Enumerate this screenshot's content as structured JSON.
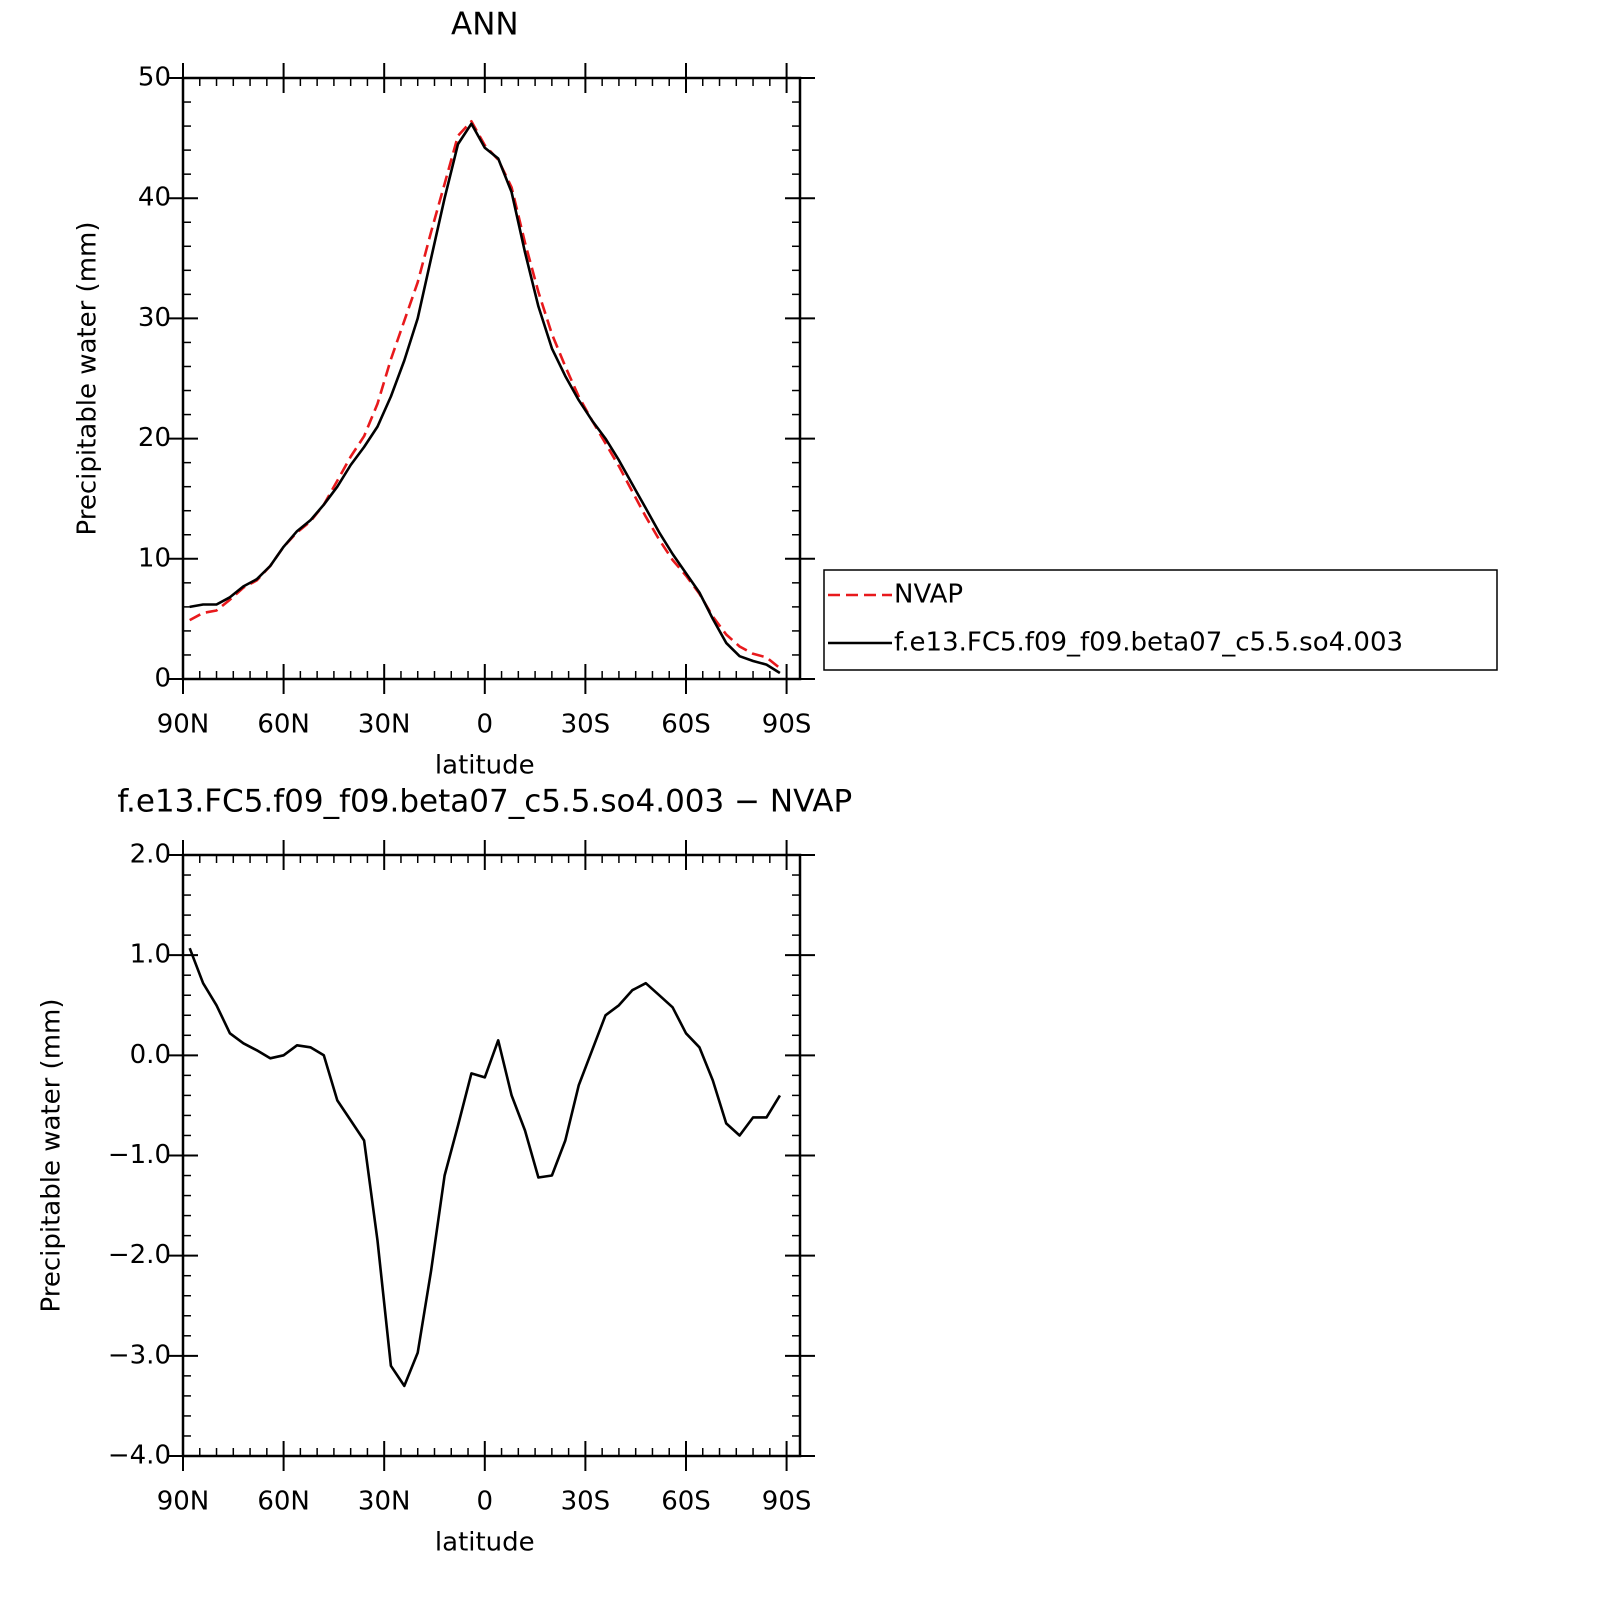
{
  "chart_data": [
    {
      "type": "line",
      "title": "ANN",
      "xlabel": "latitude",
      "ylabel": "Precipitable water (mm)",
      "x": [
        88,
        84,
        80,
        76,
        72,
        68,
        64,
        60,
        56,
        52,
        48,
        44,
        40,
        36,
        32,
        28,
        24,
        20,
        16,
        12,
        8,
        4,
        0,
        -4,
        -8,
        -12,
        -16,
        -20,
        -24,
        -28,
        -32,
        -36,
        -40,
        -44,
        -48,
        -52,
        -56,
        -60,
        -64,
        -68,
        -72,
        -76,
        -80,
        -84,
        -88
      ],
      "series": [
        {
          "name": "NVAP",
          "color": "#e8191c",
          "dashed": true,
          "values": [
            4.9,
            5.5,
            5.7,
            6.6,
            7.6,
            8.2,
            9.4,
            11.0,
            12.2,
            13.1,
            14.5,
            16.5,
            18.5,
            20.2,
            22.9,
            26.6,
            29.8,
            33.0,
            37.2,
            41.2,
            45.2,
            46.4,
            44.4,
            43.2,
            40.9,
            36.3,
            32.2,
            28.7,
            26.0,
            23.5,
            21.5,
            19.6,
            17.7,
            15.6,
            13.5,
            11.6,
            9.9,
            8.6,
            7.1,
            5.2,
            3.7,
            2.7,
            2.1,
            1.8,
            0.9
          ]
        },
        {
          "name": "f.e13.FC5.f09_f09.beta07_c5.5.so4.003",
          "color": "#000000",
          "dashed": false,
          "values": [
            6.0,
            6.2,
            6.2,
            6.8,
            7.7,
            8.3,
            9.4,
            11.0,
            12.3,
            13.2,
            14.5,
            16.0,
            17.8,
            19.3,
            21.0,
            23.5,
            26.5,
            30.0,
            35.0,
            40.0,
            44.5,
            46.2,
            44.2,
            43.3,
            40.5,
            35.5,
            31.0,
            27.5,
            25.2,
            23.2,
            21.5,
            20.0,
            18.2,
            16.2,
            14.2,
            12.2,
            10.4,
            8.8,
            7.2,
            5.0,
            3.0,
            1.9,
            1.5,
            1.2,
            0.5
          ]
        }
      ],
      "xlim": [
        90,
        -94
      ],
      "xticks": [
        {
          "value": 90,
          "label": "90N"
        },
        {
          "value": 60,
          "label": "60N"
        },
        {
          "value": 30,
          "label": "30N"
        },
        0,
        {
          "value": -30,
          "label": "30S"
        },
        {
          "value": -60,
          "label": "60S"
        },
        {
          "value": -90,
          "label": "90S"
        }
      ],
      "ylim": [
        0,
        50
      ],
      "yticks": [
        0,
        10,
        20,
        30,
        40,
        50
      ],
      "legend": "right"
    },
    {
      "type": "line",
      "title": "f.e13.FC5.f09_f09.beta07_c5.5.so4.003 − NVAP",
      "xlabel": "latitude",
      "ylabel": "Precipitable water (mm)",
      "x": [
        88,
        84,
        80,
        76,
        72,
        68,
        64,
        60,
        56,
        52,
        48,
        44,
        40,
        36,
        32,
        28,
        24,
        20,
        16,
        12,
        8,
        4,
        0,
        -4,
        -8,
        -12,
        -16,
        -20,
        -24,
        -28,
        -32,
        -36,
        -40,
        -44,
        -48,
        -52,
        -56,
        -60,
        -64,
        -68,
        -72,
        -76,
        -80,
        -84,
        -88
      ],
      "values": [
        1.07,
        0.72,
        0.5,
        0.22,
        0.12,
        0.05,
        -0.03,
        0.0,
        0.1,
        0.08,
        0.0,
        -0.45,
        -0.65,
        -0.85,
        -1.85,
        -3.1,
        -3.3,
        -2.97,
        -2.15,
        -1.2,
        -0.7,
        -0.18,
        -0.22,
        0.15,
        -0.4,
        -0.75,
        -1.22,
        -1.2,
        -0.85,
        -0.3,
        0.05,
        0.4,
        0.5,
        0.65,
        0.72,
        0.6,
        0.48,
        0.22,
        0.08,
        -0.25,
        -0.68,
        -0.8,
        -0.62,
        -0.62,
        -0.4
      ],
      "color": "#000000",
      "xlim": [
        90,
        -94
      ],
      "xticks": [
        {
          "value": 90,
          "label": "90N"
        },
        {
          "value": 60,
          "label": "60N"
        },
        {
          "value": 30,
          "label": "30N"
        },
        0,
        {
          "value": -30,
          "label": "30S"
        },
        {
          "value": -60,
          "label": "60S"
        },
        {
          "value": -90,
          "label": "90S"
        }
      ],
      "ylim": [
        -4,
        2
      ],
      "yticks": [
        {
          "value": -4,
          "label": "−4.0"
        },
        {
          "value": -3,
          "label": "−3.0"
        },
        {
          "value": -2,
          "label": "−2.0"
        },
        {
          "value": -1,
          "label": "−1.0"
        },
        {
          "value": 0,
          "label": "0.0"
        },
        {
          "value": 1,
          "label": "1.0"
        },
        {
          "value": 2,
          "label": "2.0"
        }
      ]
    }
  ]
}
